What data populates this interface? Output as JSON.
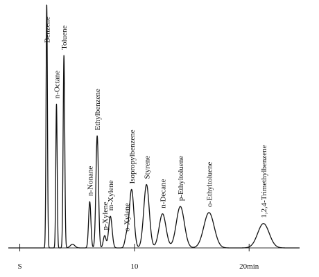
{
  "chart_data": {
    "type": "line",
    "title": "",
    "xlabel": "",
    "ylabel": "",
    "x_unit": "min",
    "xlim": [
      -1.0,
      24.4
    ],
    "ylim": [
      0,
      100
    ],
    "grid": false,
    "legend": "none",
    "line_color": "#111111",
    "ticks": [
      {
        "x": 0,
        "label": "S"
      },
      {
        "x": 10,
        "label": "10"
      },
      {
        "x": 20,
        "label": "20min"
      }
    ],
    "peaks": [
      {
        "name": "Benzene",
        "rt": 2.35,
        "height": 100,
        "width": 0.06
      },
      {
        "name": "n-Octane",
        "rt": 3.2,
        "height": 59,
        "width": 0.06
      },
      {
        "name": "Toluene",
        "rt": 3.85,
        "height": 79,
        "width": 0.07
      },
      {
        "name": "",
        "rt": 4.6,
        "height": 1.5,
        "width": 0.2
      },
      {
        "name": "n-Nonane",
        "rt": 6.1,
        "height": 19,
        "width": 0.1
      },
      {
        "name": "Ethylbenzene",
        "rt": 6.75,
        "height": 46,
        "width": 0.11
      },
      {
        "name": "p-Xylene",
        "rt": 7.4,
        "height": 5,
        "width": 0.12
      },
      {
        "name": "m-Xylene",
        "rt": 7.9,
        "height": 13,
        "width": 0.15
      },
      {
        "name": "o-Xylene",
        "rt": 9.3,
        "height": 4.5,
        "width": 0.14
      },
      {
        "name": "Isopropylbenzene",
        "rt": 9.75,
        "height": 24,
        "width": 0.2
      },
      {
        "name": "Styrene",
        "rt": 11.05,
        "height": 26,
        "width": 0.24
      },
      {
        "name": "n-Decane",
        "rt": 12.45,
        "height": 14,
        "width": 0.3
      },
      {
        "name": "p-Ethyltoluene",
        "rt": 14.0,
        "height": 17,
        "width": 0.35
      },
      {
        "name": "o-Ethyltoluene",
        "rt": 16.5,
        "height": 14.5,
        "width": 0.45
      },
      {
        "name": "1,2,4-Trimethylbenzene",
        "rt": 21.25,
        "height": 10,
        "width": 0.5
      }
    ]
  }
}
